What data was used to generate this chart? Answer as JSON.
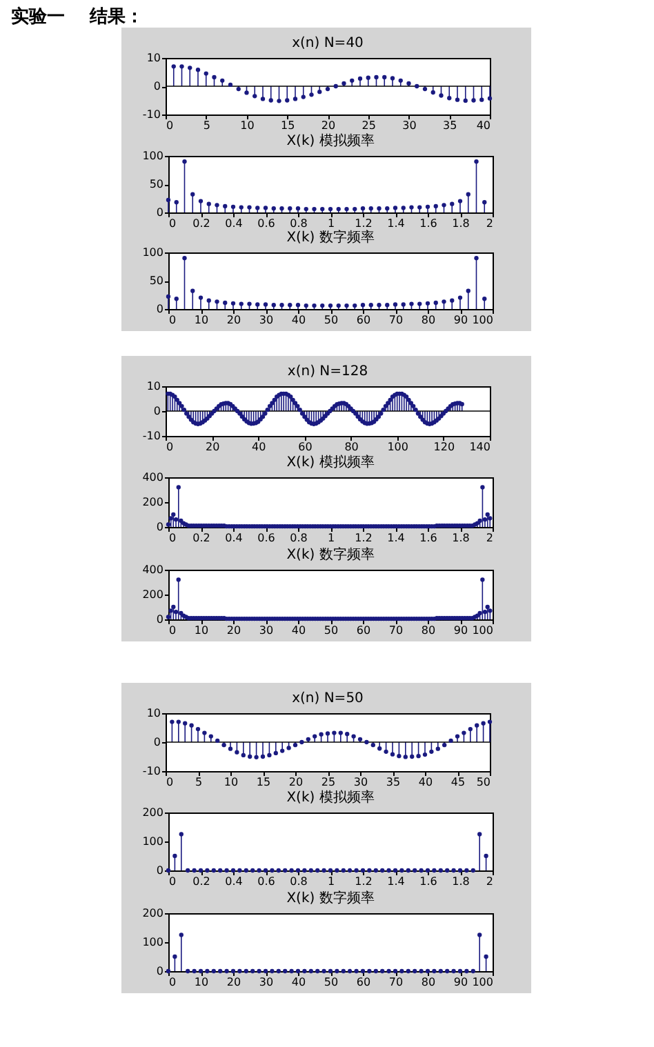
{
  "chart_data": [
    {
      "type": "lollipop",
      "title": "x(n) N=40",
      "annotations": [
        "实验一",
        "结果："
      ],
      "color": "#1a1a80",
      "marker": "circle",
      "xlim": [
        0,
        40
      ],
      "xticks": [
        0,
        5,
        10,
        15,
        20,
        25,
        30,
        35,
        40
      ],
      "ylim": [
        -10,
        10
      ],
      "yticks": [
        -10,
        0,
        10
      ],
      "ref_lines": [
        {
          "axis": "y",
          "value": 0,
          "color": "#000000"
        }
      ],
      "x": [
        1,
        2,
        3,
        4,
        5,
        6,
        7,
        8,
        9,
        10,
        11,
        12,
        13,
        14,
        15,
        16,
        17,
        18,
        19,
        20,
        21,
        22,
        23,
        24,
        25,
        26,
        27,
        28,
        29,
        30,
        31,
        32,
        33,
        34,
        35,
        36,
        37,
        38,
        39,
        40
      ],
      "values": [
        7,
        7,
        6.5,
        5.8,
        4.5,
        3.2,
        2,
        0.5,
        -1,
        -2.3,
        -3.5,
        -4.5,
        -5,
        -5.2,
        -5,
        -4.5,
        -3.8,
        -3,
        -2,
        -1,
        0,
        1,
        2,
        2.7,
        3,
        3.2,
        3.2,
        2.8,
        2,
        1,
        0,
        -1,
        -2.2,
        -3.3,
        -4.2,
        -4.8,
        -5.1,
        -5,
        -4.8,
        -4.3
      ]
    },
    {
      "type": "lollipop",
      "title": "X(k) 模拟频率",
      "color": "#1a1a80",
      "marker": "circle",
      "xlim": [
        0,
        2
      ],
      "xticks": [
        0,
        0.2,
        0.4,
        0.6,
        0.8,
        1,
        1.2,
        1.4,
        1.6,
        1.8,
        2
      ],
      "ylim": [
        0,
        100
      ],
      "yticks": [
        0,
        50,
        100
      ],
      "x": [
        0,
        0.05,
        0.1,
        0.15,
        0.2,
        0.25,
        0.3,
        0.35,
        0.4,
        0.45,
        0.5,
        0.55,
        0.6,
        0.65,
        0.7,
        0.75,
        0.8,
        0.85,
        0.9,
        0.95,
        1,
        1.05,
        1.1,
        1.15,
        1.2,
        1.25,
        1.3,
        1.35,
        1.4,
        1.45,
        1.5,
        1.55,
        1.6,
        1.65,
        1.7,
        1.75,
        1.8,
        1.85,
        1.9,
        1.95
      ],
      "values": [
        22,
        18,
        90,
        32,
        20,
        15,
        13,
        11,
        10,
        9,
        9,
        8,
        8,
        7,
        7,
        7,
        7,
        6,
        6,
        6,
        6,
        6,
        6,
        6,
        7,
        7,
        7,
        7,
        8,
        8,
        9,
        9,
        10,
        11,
        13,
        15,
        20,
        32,
        90,
        18
      ]
    },
    {
      "type": "lollipop",
      "title": "X(k) 数字频率",
      "color": "#1a1a80",
      "marker": "circle",
      "xlim": [
        0,
        100
      ],
      "xticks": [
        0,
        10,
        20,
        30,
        40,
        50,
        60,
        70,
        80,
        90,
        100
      ],
      "ylim": [
        0,
        100
      ],
      "yticks": [
        0,
        50,
        100
      ],
      "x": [
        0,
        2.5,
        5,
        7.5,
        10,
        12.5,
        15,
        17.5,
        20,
        22.5,
        25,
        27.5,
        30,
        32.5,
        35,
        37.5,
        40,
        42.5,
        45,
        47.5,
        50,
        52.5,
        55,
        57.5,
        60,
        62.5,
        65,
        67.5,
        70,
        72.5,
        75,
        77.5,
        80,
        82.5,
        85,
        87.5,
        90,
        92.5,
        95,
        97.5
      ],
      "values": [
        22,
        18,
        90,
        32,
        20,
        15,
        13,
        11,
        10,
        9,
        9,
        8,
        8,
        7,
        7,
        7,
        7,
        6,
        6,
        6,
        6,
        6,
        6,
        6,
        7,
        7,
        7,
        7,
        8,
        8,
        9,
        9,
        10,
        11,
        13,
        15,
        20,
        32,
        90,
        18
      ]
    },
    {
      "type": "lollipop",
      "title": "x(n) N=128",
      "color": "#1a1a80",
      "marker": "circle",
      "xlim": [
        0,
        140
      ],
      "xticks": [
        0,
        20,
        40,
        60,
        80,
        100,
        120,
        140
      ],
      "ylim": [
        -10,
        10
      ],
      "yticks": [
        -10,
        0,
        10
      ],
      "ref_lines": [
        {
          "axis": "y",
          "value": 0,
          "color": "#000000"
        }
      ],
      "x": [
        1,
        2,
        3,
        4,
        5,
        6,
        7,
        8,
        9,
        10,
        11,
        12,
        13,
        14,
        15,
        16,
        17,
        18,
        19,
        20,
        21,
        22,
        23,
        24,
        25,
        26,
        27,
        28,
        29,
        30,
        31,
        32,
        33,
        34,
        35,
        36,
        37,
        38,
        39,
        40,
        41,
        42,
        43,
        44,
        45,
        46,
        47,
        48,
        49,
        50,
        51,
        52,
        53,
        54,
        55,
        56,
        57,
        58,
        59,
        60,
        61,
        62,
        63,
        64,
        65,
        66,
        67,
        68,
        69,
        70,
        71,
        72,
        73,
        74,
        75,
        76,
        77,
        78,
        79,
        80,
        81,
        82,
        83,
        84,
        85,
        86,
        87,
        88,
        89,
        90,
        91,
        92,
        93,
        94,
        95,
        96,
        97,
        98,
        99,
        100,
        101,
        102,
        103,
        104,
        105,
        106,
        107,
        108,
        109,
        110,
        111,
        112,
        113,
        114,
        115,
        116,
        117,
        118,
        119,
        120,
        121,
        122,
        123,
        124,
        125,
        126,
        127,
        128
      ],
      "values": [
        7,
        7,
        6.5,
        5.8,
        4.5,
        3.2,
        2,
        0.5,
        -1,
        -2.3,
        -3.5,
        -4.5,
        -5,
        -5.2,
        -5,
        -4.5,
        -3.8,
        -3,
        -2,
        -1,
        0,
        1,
        2,
        2.7,
        3,
        3.2,
        3.2,
        2.8,
        2,
        1,
        0,
        -1,
        -2.2,
        -3.3,
        -4.2,
        -4.8,
        -5.1,
        -5,
        -4.8,
        -4.3,
        -3.3,
        -2.3,
        -1,
        0.5,
        2,
        3.2,
        4.5,
        5.8,
        6.5,
        7,
        7,
        7,
        6.5,
        5.8,
        4.5,
        3.2,
        2,
        0.5,
        -1,
        -2.3,
        -3.5,
        -4.5,
        -5,
        -5.2,
        -5,
        -4.5,
        -3.8,
        -3,
        -2,
        -1,
        0,
        1,
        2,
        2.7,
        3,
        3.2,
        3.2,
        2.8,
        2,
        1,
        0,
        -1,
        -2.2,
        -3.3,
        -4.2,
        -4.8,
        -5.1,
        -5,
        -4.8,
        -4.3,
        -3.3,
        -2.3,
        -1,
        0.5,
        2,
        3.2,
        4.5,
        5.8,
        6.5,
        7,
        7,
        7,
        6.5,
        5.8,
        4.5,
        3.2,
        2,
        0.5,
        -1,
        -2.3,
        -3.5,
        -4.5,
        -5,
        -5.2,
        -5,
        -4.5,
        -3.8,
        -3,
        -2,
        -1,
        0,
        1,
        2,
        2.7,
        3,
        3.2,
        3.2,
        2.8
      ]
    },
    {
      "type": "lollipop",
      "title": "X(k) 模拟频率",
      "color": "#1a1a80",
      "marker": "circle",
      "xlim": [
        0,
        2
      ],
      "xticks": [
        0,
        0.2,
        0.4,
        0.6,
        0.8,
        1,
        1.2,
        1.4,
        1.6,
        1.8,
        2
      ],
      "ylim": [
        0,
        400
      ],
      "yticks": [
        0,
        200,
        400
      ],
      "x": [
        0,
        0.016,
        0.031,
        0.047,
        0.063,
        0.078,
        0.094,
        0.109,
        0.125,
        0.141,
        0.156,
        0.172,
        0.188,
        0.203,
        0.219,
        0.234,
        0.25,
        0.266,
        0.281,
        0.297,
        0.313,
        0.328,
        0.344,
        0.359,
        0.375,
        0.391,
        0.406,
        0.422,
        0.438,
        0.453,
        0.469,
        0.484,
        0.5,
        0.516,
        0.531,
        0.547,
        0.563,
        0.578,
        0.594,
        0.609,
        0.625,
        0.641,
        0.656,
        0.672,
        0.688,
        0.703,
        0.719,
        0.734,
        0.75,
        0.766,
        0.781,
        0.797,
        0.813,
        0.828,
        0.844,
        0.859,
        0.875,
        0.891,
        0.906,
        0.922,
        0.938,
        0.953,
        0.969,
        0.984,
        1,
        1.016,
        1.031,
        1.047,
        1.063,
        1.078,
        1.094,
        1.109,
        1.125,
        1.141,
        1.156,
        1.172,
        1.188,
        1.203,
        1.219,
        1.234,
        1.25,
        1.266,
        1.281,
        1.297,
        1.313,
        1.328,
        1.344,
        1.359,
        1.375,
        1.391,
        1.406,
        1.422,
        1.438,
        1.453,
        1.469,
        1.484,
        1.5,
        1.516,
        1.531,
        1.547,
        1.563,
        1.578,
        1.594,
        1.609,
        1.625,
        1.641,
        1.656,
        1.672,
        1.688,
        1.703,
        1.719,
        1.734,
        1.75,
        1.766,
        1.781,
        1.797,
        1.813,
        1.828,
        1.844,
        1.859,
        1.875,
        1.891,
        1.906,
        1.922,
        1.938,
        1.953,
        1.969,
        1.984
      ],
      "values": [
        20,
        70,
        100,
        60,
        320,
        50,
        30,
        20,
        10,
        10,
        10,
        10,
        10,
        10,
        10,
        10,
        10,
        10,
        10,
        10,
        10,
        10,
        10,
        5,
        5,
        5,
        5,
        5,
        5,
        5,
        5,
        5,
        5,
        5,
        5,
        5,
        5,
        5,
        5,
        5,
        5,
        5,
        5,
        5,
        5,
        5,
        5,
        5,
        5,
        5,
        5,
        5,
        5,
        5,
        5,
        5,
        5,
        5,
        5,
        5,
        5,
        5,
        5,
        5,
        5,
        5,
        5,
        5,
        5,
        5,
        5,
        5,
        5,
        5,
        5,
        5,
        5,
        5,
        5,
        5,
        5,
        5,
        5,
        5,
        5,
        5,
        5,
        5,
        5,
        5,
        5,
        5,
        5,
        5,
        5,
        5,
        5,
        5,
        5,
        5,
        5,
        5,
        5,
        5,
        5,
        5,
        10,
        10,
        10,
        10,
        10,
        10,
        10,
        10,
        10,
        10,
        10,
        10,
        10,
        10,
        10,
        20,
        30,
        50,
        320,
        60,
        100,
        70
      ]
    },
    {
      "type": "lollipop",
      "title": "X(k) 数字频率",
      "color": "#1a1a80",
      "marker": "circle",
      "xlim": [
        0,
        100
      ],
      "xticks": [
        0,
        10,
        20,
        30,
        40,
        50,
        60,
        70,
        80,
        90,
        100
      ],
      "ylim": [
        0,
        400
      ],
      "yticks": [
        0,
        200,
        400
      ],
      "x": [
        0,
        0.78,
        1.56,
        2.34,
        3.13,
        3.91,
        4.69,
        5.47,
        6.25,
        7.03,
        7.81,
        8.59,
        9.38,
        10.16,
        10.94,
        11.72,
        12.5,
        13.28,
        14.06,
        14.84,
        15.63,
        16.41,
        17.19,
        17.97,
        18.75,
        19.53,
        20.31,
        21.09,
        21.88,
        22.66,
        23.44,
        24.22,
        25,
        25.78,
        26.56,
        27.34,
        28.13,
        28.91,
        29.69,
        30.47,
        31.25,
        32.03,
        32.81,
        33.59,
        34.38,
        35.16,
        35.94,
        36.72,
        37.5,
        38.28,
        39.06,
        39.84,
        40.63,
        41.41,
        42.19,
        42.97,
        43.75,
        44.53,
        45.31,
        46.09,
        46.88,
        47.66,
        48.44,
        49.22,
        50,
        50.78,
        51.56,
        52.34,
        53.13,
        53.91,
        54.69,
        55.47,
        56.25,
        57.03,
        57.81,
        58.59,
        59.38,
        60.16,
        60.94,
        61.72,
        62.5,
        63.28,
        64.06,
        64.84,
        65.63,
        66.41,
        67.19,
        67.97,
        68.75,
        69.53,
        70.31,
        71.09,
        71.88,
        72.66,
        73.44,
        74.22,
        75,
        75.78,
        76.56,
        77.34,
        78.13,
        78.91,
        79.69,
        80.47,
        81.25,
        82.03,
        82.81,
        83.59,
        84.38,
        85.16,
        85.94,
        86.72,
        87.5,
        88.28,
        89.06,
        89.84,
        90.63,
        91.41,
        92.19,
        92.97,
        93.75,
        94.53,
        95.31,
        96.09,
        96.88,
        97.66,
        98.44,
        99.22
      ],
      "values": [
        20,
        70,
        100,
        60,
        320,
        50,
        30,
        20,
        10,
        10,
        10,
        10,
        10,
        10,
        10,
        10,
        10,
        10,
        10,
        10,
        10,
        10,
        10,
        5,
        5,
        5,
        5,
        5,
        5,
        5,
        5,
        5,
        5,
        5,
        5,
        5,
        5,
        5,
        5,
        5,
        5,
        5,
        5,
        5,
        5,
        5,
        5,
        5,
        5,
        5,
        5,
        5,
        5,
        5,
        5,
        5,
        5,
        5,
        5,
        5,
        5,
        5,
        5,
        5,
        5,
        5,
        5,
        5,
        5,
        5,
        5,
        5,
        5,
        5,
        5,
        5,
        5,
        5,
        5,
        5,
        5,
        5,
        5,
        5,
        5,
        5,
        5,
        5,
        5,
        5,
        5,
        5,
        5,
        5,
        5,
        5,
        5,
        5,
        5,
        5,
        5,
        5,
        5,
        5,
        5,
        5,
        10,
        10,
        10,
        10,
        10,
        10,
        10,
        10,
        10,
        10,
        10,
        10,
        10,
        10,
        10,
        20,
        30,
        50,
        320,
        60,
        100,
        70
      ]
    },
    {
      "type": "lollipop",
      "title": "x(n) N=50",
      "color": "#1a1a80",
      "marker": "circle",
      "xlim": [
        0,
        50
      ],
      "xticks": [
        0,
        5,
        10,
        15,
        20,
        25,
        30,
        35,
        40,
        45,
        50
      ],
      "ylim": [
        -10,
        10
      ],
      "yticks": [
        -10,
        0,
        10
      ],
      "ref_lines": [
        {
          "axis": "y",
          "value": 0,
          "color": "#000000"
        }
      ],
      "x": [
        1,
        2,
        3,
        4,
        5,
        6,
        7,
        8,
        9,
        10,
        11,
        12,
        13,
        14,
        15,
        16,
        17,
        18,
        19,
        20,
        21,
        22,
        23,
        24,
        25,
        26,
        27,
        28,
        29,
        30,
        31,
        32,
        33,
        34,
        35,
        36,
        37,
        38,
        39,
        40,
        41,
        42,
        43,
        44,
        45,
        46,
        47,
        48,
        49,
        50
      ],
      "values": [
        7,
        7,
        6.5,
        5.8,
        4.5,
        3.2,
        2,
        0.5,
        -1,
        -2.3,
        -3.5,
        -4.5,
        -5,
        -5.2,
        -5,
        -4.5,
        -3.8,
        -3,
        -2,
        -1,
        0,
        1,
        2,
        2.7,
        3,
        3.2,
        3.2,
        2.8,
        2,
        1,
        0,
        -1,
        -2.2,
        -3.3,
        -4.2,
        -4.8,
        -5.1,
        -5,
        -4.8,
        -4.3,
        -3.3,
        -2.3,
        -1,
        0.5,
        2,
        3.2,
        4.5,
        5.8,
        6.5,
        7
      ]
    },
    {
      "type": "lollipop",
      "title": "X(k) 模拟频率",
      "color": "#1a1a80",
      "marker": "circle",
      "xlim": [
        0,
        2
      ],
      "xticks": [
        0,
        0.2,
        0.4,
        0.6,
        0.8,
        1,
        1.2,
        1.4,
        1.6,
        1.8,
        2
      ],
      "ylim": [
        0,
        200
      ],
      "yticks": [
        0,
        100,
        200
      ],
      "x": [
        0,
        0.04,
        0.08,
        0.12,
        0.16,
        0.2,
        0.24,
        0.28,
        0.32,
        0.36,
        0.4,
        0.44,
        0.48,
        0.52,
        0.56,
        0.6,
        0.64,
        0.68,
        0.72,
        0.76,
        0.8,
        0.84,
        0.88,
        0.92,
        0.96,
        1,
        1.04,
        1.08,
        1.12,
        1.16,
        1.2,
        1.24,
        1.28,
        1.32,
        1.36,
        1.4,
        1.44,
        1.48,
        1.52,
        1.56,
        1.6,
        1.64,
        1.68,
        1.72,
        1.76,
        1.8,
        1.84,
        1.88,
        1.92,
        1.96
      ],
      "values": [
        0,
        50,
        125,
        0,
        0,
        0,
        0,
        0,
        0,
        0,
        0,
        0,
        0,
        0,
        0,
        0,
        0,
        0,
        0,
        0,
        0,
        0,
        0,
        0,
        0,
        0,
        0,
        0,
        0,
        0,
        0,
        0,
        0,
        0,
        0,
        0,
        0,
        0,
        0,
        0,
        0,
        0,
        0,
        0,
        0,
        0,
        0,
        0,
        125,
        50
      ]
    },
    {
      "type": "lollipop",
      "title": "X(k) 数字频率",
      "color": "#1a1a80",
      "marker": "circle",
      "xlim": [
        0,
        100
      ],
      "xticks": [
        0,
        10,
        20,
        30,
        40,
        50,
        60,
        70,
        80,
        90,
        100
      ],
      "ylim": [
        0,
        200
      ],
      "yticks": [
        0,
        100,
        200
      ],
      "x": [
        0,
        2,
        4,
        6,
        8,
        10,
        12,
        14,
        16,
        18,
        20,
        22,
        24,
        26,
        28,
        30,
        32,
        34,
        36,
        38,
        40,
        42,
        44,
        46,
        48,
        50,
        52,
        54,
        56,
        58,
        60,
        62,
        64,
        66,
        68,
        70,
        72,
        74,
        76,
        78,
        80,
        82,
        84,
        86,
        88,
        90,
        92,
        94,
        96,
        98
      ],
      "values": [
        0,
        50,
        125,
        0,
        0,
        0,
        0,
        0,
        0,
        0,
        0,
        0,
        0,
        0,
        0,
        0,
        0,
        0,
        0,
        0,
        0,
        0,
        0,
        0,
        0,
        0,
        0,
        0,
        0,
        0,
        0,
        0,
        0,
        0,
        0,
        0,
        0,
        0,
        0,
        0,
        0,
        0,
        0,
        0,
        0,
        0,
        0,
        0,
        125,
        50
      ]
    }
  ]
}
